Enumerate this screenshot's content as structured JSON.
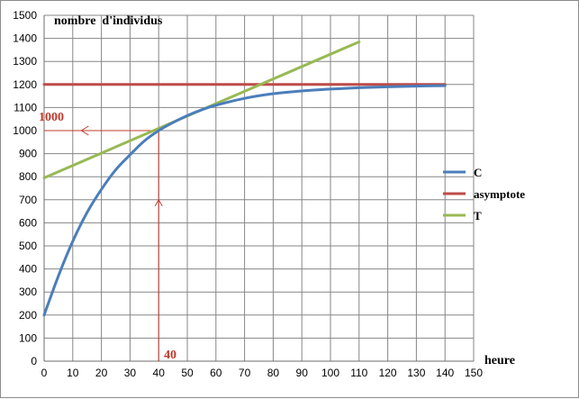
{
  "chart_data": {
    "type": "line",
    "title": "",
    "xlabel": "heure",
    "ylabel": "nombre  d'individus",
    "xlim": [
      0,
      150
    ],
    "ylim": [
      0,
      1500
    ],
    "x_ticks": [
      0,
      10,
      20,
      30,
      40,
      50,
      60,
      70,
      80,
      90,
      100,
      110,
      120,
      130,
      140,
      150
    ],
    "y_ticks": [
      0,
      100,
      200,
      300,
      400,
      500,
      600,
      700,
      800,
      900,
      1000,
      1100,
      1200,
      1300,
      1400,
      1500
    ],
    "grid": true,
    "legend_position": "right",
    "series": [
      {
        "name": "C",
        "color": "#4a7ebb",
        "x": [
          0,
          5,
          10,
          15,
          20,
          25,
          30,
          35,
          40,
          45,
          50,
          55,
          60,
          70,
          80,
          90,
          100,
          110,
          120,
          130,
          140
        ],
        "y": [
          200,
          370,
          520,
          645,
          745,
          830,
          895,
          955,
          1000,
          1035,
          1065,
          1090,
          1110,
          1140,
          1160,
          1172,
          1180,
          1186,
          1190,
          1193,
          1195
        ]
      },
      {
        "name": "asymptote",
        "color": "#be4b48",
        "x": [
          0,
          140
        ],
        "y": [
          1200,
          1200
        ]
      },
      {
        "name": "T",
        "color": "#98b954",
        "x": [
          0,
          110
        ],
        "y": [
          795,
          1385
        ]
      }
    ],
    "annotations": [
      {
        "text": "1000",
        "x": 40,
        "y": 1000
      },
      {
        "text": "40",
        "x": 40,
        "y": 0
      }
    ]
  }
}
